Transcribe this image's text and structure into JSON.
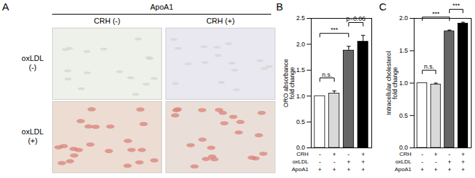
{
  "image_panel": {
    "title": "A",
    "header": "ApoA1",
    "columns": [
      "CRH (-)",
      "CRH (+)"
    ],
    "rows": [
      "oxLDL\n(-)",
      "oxLDL\n(+)"
    ]
  },
  "chart_data": [
    {
      "type": "bar",
      "title": "B",
      "y_label": "ORO absorbance\nfold change",
      "categories": [
        null,
        null,
        null,
        null
      ],
      "values": [
        1.0,
        1.05,
        1.88,
        2.05
      ],
      "errors": [
        0,
        0.05,
        0.08,
        0.12
      ],
      "colors": [
        "#ffffff",
        "#d9d9d9",
        "#666666",
        "#000000"
      ],
      "ylim": [
        0,
        2.5
      ],
      "yticks": [
        {
          "value": 0,
          "label": "0.0"
        },
        0.5,
        {
          "value": 1,
          "label": "1.0"
        },
        1.5,
        {
          "value": 2,
          "label": "2.0"
        },
        2.5
      ],
      "conditions": [
        {
          "name": "CRH",
          "values": [
            "-",
            "+",
            "-",
            "+"
          ]
        },
        {
          "name": "oxLDL",
          "values": [
            "-",
            "-",
            "+",
            "+"
          ]
        },
        {
          "name": "ApoA1",
          "values": [
            "+",
            "+",
            "+",
            "+"
          ]
        }
      ],
      "annotations": [
        {
          "from": 0,
          "to": 1,
          "label": "n.s."
        },
        {
          "from": 0,
          "to": 2,
          "label": "***"
        },
        {
          "from": 2,
          "to": 3,
          "label": "p=0.06"
        }
      ]
    },
    {
      "type": "bar",
      "title": "C",
      "y_label": "Intracellular cholesterol\nfold change",
      "categories": [
        null,
        null,
        null,
        null
      ],
      "values": [
        1.0,
        0.98,
        1.8,
        1.92
      ],
      "errors": [
        0,
        0.02,
        0.02,
        0.02
      ],
      "colors": [
        "#ffffff",
        "#d9d9d9",
        "#666666",
        "#000000"
      ],
      "ylim": [
        0,
        2.0
      ],
      "yticks": [
        {
          "value": 0,
          "label": "0.0"
        },
        0.5,
        {
          "value": 1,
          "label": "1.0"
        },
        1.5,
        {
          "value": 2,
          "label": "2.0"
        }
      ],
      "conditions": [
        {
          "name": "CRH",
          "values": [
            "-",
            "+",
            "-",
            "+"
          ]
        },
        {
          "name": "oxLDL",
          "values": [
            "-",
            "-",
            "+",
            "+"
          ]
        },
        {
          "name": "ApoA1",
          "values": [
            "+",
            "+",
            "+",
            "+"
          ]
        }
      ],
      "annotations": [
        {
          "from": 0,
          "to": 1,
          "label": "n.s."
        },
        {
          "from": 0,
          "to": 2,
          "label": "***"
        },
        {
          "from": 2,
          "to": 3,
          "label": "***"
        }
      ]
    }
  ]
}
